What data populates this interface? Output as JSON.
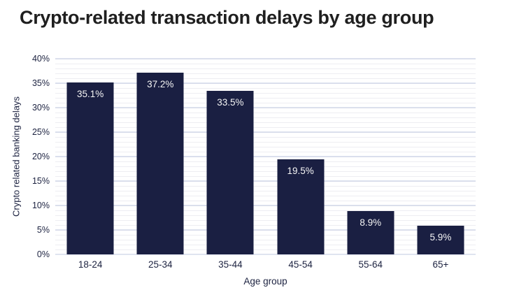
{
  "title": "Crypto-related transaction delays by age group",
  "chart_data": {
    "type": "bar",
    "title": "Crypto-related transaction delays by age group",
    "categories": [
      "18-24",
      "25-34",
      "35-44",
      "45-54",
      "55-64",
      "65+"
    ],
    "values": [
      35.1,
      37.2,
      33.5,
      19.5,
      8.9,
      5.9
    ],
    "data_labels": [
      "35.1%",
      "37.2%",
      "33.5%",
      "19.5%",
      "8.9%",
      "5.9%"
    ],
    "xlabel": "Age group",
    "ylabel": "Crypto related banking delays",
    "ylim": [
      0,
      40
    ],
    "y_major_step": 5,
    "y_minor_step": 1,
    "y_tick_labels": [
      "0%",
      "5%",
      "10%",
      "15%",
      "20%",
      "25%",
      "30%",
      "35%",
      "40%"
    ],
    "grid": "on",
    "legend": "none",
    "colors": {
      "bar": "#1a1f42",
      "axis_text": "#1c2240",
      "major_grid": "#bfc8e0",
      "minor_grid": "#ededf2",
      "title": "#1f1f1f",
      "data_label": "#f5f5f5",
      "background": "#ffffff"
    }
  }
}
